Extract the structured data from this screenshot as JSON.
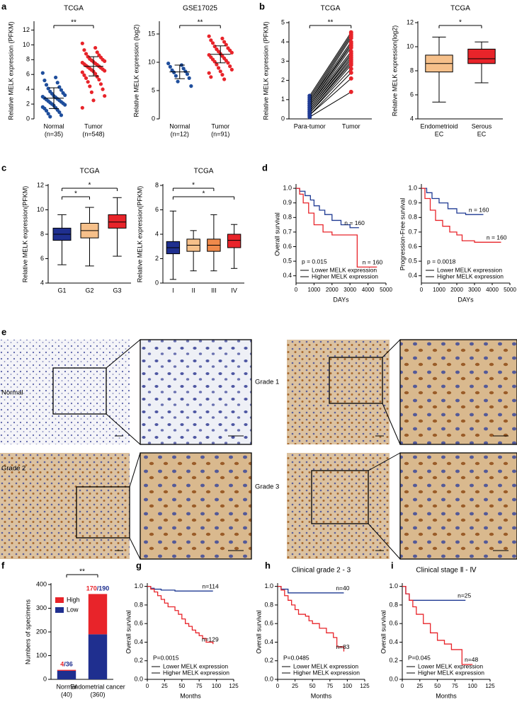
{
  "panel_labels": [
    "a",
    "b",
    "c",
    "d",
    "e",
    "f",
    "g",
    "h",
    "i"
  ],
  "histology": {
    "labels": [
      "Normal",
      "Grade 1",
      "Grade 2",
      "Grade 3"
    ]
  },
  "chart_data": [
    {
      "type": "dot",
      "title": "TCGA",
      "ylabel": "Relative MELK expression (PFKM)",
      "categories": [
        "Normal",
        "Tumor"
      ],
      "category_sublabels": [
        "(n=35)",
        "(n=548)"
      ],
      "colors": [
        "#1f4e9c",
        "#e8242a"
      ],
      "values": [
        [
          6.2,
          5.6,
          5.2,
          4.9,
          4.6,
          4.3,
          4.1,
          3.9,
          3.7,
          3.5,
          3.4,
          3.2,
          3.1,
          3.0,
          2.9,
          2.8,
          2.7,
          2.6,
          2.5,
          2.4,
          2.3,
          2.2,
          2.1,
          2.0,
          1.9,
          1.8,
          1.6,
          1.5,
          1.4,
          1.2,
          1.1,
          0.9,
          0.7,
          0.5,
          0.3
        ],
        [
          10.2,
          9.6,
          9.3,
          9.0,
          8.8,
          8.6,
          8.4,
          8.3,
          8.1,
          8.0,
          7.9,
          7.8,
          7.7,
          7.6,
          7.5,
          7.4,
          7.3,
          7.2,
          7.1,
          7.0,
          6.9,
          6.8,
          6.7,
          6.6,
          6.5,
          6.4,
          6.3,
          6.1,
          5.9,
          5.7,
          5.5,
          5.3,
          5.0,
          4.7,
          4.4,
          4.0,
          3.6,
          3.1,
          2.5,
          1.5
        ]
      ],
      "means": [
        2.8,
        7.1
      ],
      "sds": [
        1.4,
        1.3
      ],
      "ylim": [
        0,
        13
      ],
      "yticks": [
        0,
        2,
        4,
        6,
        8,
        10,
        12
      ],
      "significance": [
        {
          "groups": [
            "Normal",
            "Tumor"
          ],
          "label": "**"
        }
      ]
    },
    {
      "type": "dot",
      "title": "GSE17025",
      "ylabel": "Relative MELK expression (log2)",
      "categories": [
        "Normal",
        "Tumor"
      ],
      "category_sublabels": [
        "(n=12)",
        "(n=91)"
      ],
      "colors": [
        "#1f4e9c",
        "#e8242a"
      ],
      "values": [
        [
          9.8,
          9.5,
          9.2,
          8.9,
          8.6,
          8.4,
          8.2,
          7.9,
          7.6,
          7.2,
          6.6,
          5.8
        ],
        [
          14.6,
          14.2,
          13.9,
          13.6,
          13.4,
          13.1,
          12.8,
          12.5,
          12.3,
          12.1,
          11.9,
          11.7,
          11.5,
          11.3,
          11.1,
          10.9,
          10.7,
          10.5,
          10.3,
          10.1,
          9.9,
          9.6,
          9.3,
          9.0,
          8.7,
          8.4,
          8.1,
          7.8,
          7.4,
          7.0
        ]
      ],
      "means": [
        8.3,
        11.4
      ],
      "sds": [
        1.2,
        1.5
      ],
      "ylim": [
        0,
        17
      ],
      "yticks": [
        0,
        5,
        10,
        15
      ],
      "significance": [
        {
          "groups": [
            "Normal",
            "Tumor"
          ],
          "label": "**"
        }
      ]
    },
    {
      "type": "paired",
      "title": "TCGA",
      "ylabel": "Relative MELK expression (PFKM)",
      "categories": [
        "Para-tumor",
        "Tumor"
      ],
      "colors": [
        "#1f3a93",
        "#e8242a"
      ],
      "pairs": [
        [
          1.2,
          4.5
        ],
        [
          1.1,
          4.4
        ],
        [
          1.0,
          4.3
        ],
        [
          0.9,
          4.2
        ],
        [
          0.9,
          4.0
        ],
        [
          0.8,
          3.9
        ],
        [
          0.8,
          3.8
        ],
        [
          0.7,
          3.7
        ],
        [
          0.7,
          3.5
        ],
        [
          0.6,
          3.4
        ],
        [
          0.6,
          3.3
        ],
        [
          0.5,
          3.2
        ],
        [
          0.5,
          3.1
        ],
        [
          0.4,
          3.0
        ],
        [
          0.4,
          2.9
        ],
        [
          0.3,
          2.8
        ],
        [
          0.3,
          2.6
        ],
        [
          0.2,
          2.4
        ],
        [
          0.2,
          2.1
        ],
        [
          0.1,
          1.4
        ]
      ],
      "ylim": [
        0,
        5
      ],
      "yticks": [
        0,
        1,
        2,
        3,
        4,
        5
      ],
      "significance": [
        {
          "groups": [
            "Para-tumor",
            "Tumor"
          ],
          "label": "**"
        }
      ]
    },
    {
      "type": "box",
      "title": "TCGA",
      "ylabel": "Relative MELK expression(log2)",
      "categories": [
        "Endometrioid",
        "Serous"
      ],
      "category_sublabels": [
        "EC",
        "EC"
      ],
      "colors": [
        "#f6c08a",
        "#e8242a"
      ],
      "boxes": [
        {
          "min": 5.4,
          "q1": 7.9,
          "median": 8.6,
          "q3": 9.3,
          "max": 10.8
        },
        {
          "min": 7.0,
          "q1": 8.6,
          "median": 9.0,
          "q3": 9.8,
          "max": 10.4
        }
      ],
      "ylim": [
        4,
        12
      ],
      "yticks": [
        4,
        6,
        8,
        10,
        12
      ],
      "significance": [
        {
          "groups": [
            "Endometrioid",
            "Serous"
          ],
          "label": "*"
        }
      ]
    },
    {
      "type": "box",
      "title": "TCGA",
      "ylabel": "Relative MELK expression(PFKM)",
      "categories": [
        "G1",
        "G2",
        "G3"
      ],
      "colors": [
        "#1f2f8f",
        "#f6c08a",
        "#e8242a"
      ],
      "boxes": [
        {
          "min": 5.5,
          "q1": 7.5,
          "median": 8.0,
          "q3": 8.5,
          "max": 9.6
        },
        {
          "min": 5.4,
          "q1": 7.7,
          "median": 8.3,
          "q3": 8.9,
          "max": 10.2
        },
        {
          "min": 6.2,
          "q1": 8.5,
          "median": 9.0,
          "q3": 9.6,
          "max": 11.0
        }
      ],
      "ylim": [
        4,
        12
      ],
      "yticks": [
        4,
        6,
        8,
        10,
        12
      ],
      "significance": [
        {
          "groups": [
            "G1",
            "G3"
          ],
          "label": "*"
        },
        {
          "groups": [
            "G1",
            "G2"
          ],
          "label": "*"
        }
      ]
    },
    {
      "type": "box",
      "title": "TCGA",
      "ylabel": "Relative MELK expression(PFKM)",
      "categories": [
        "I",
        "II",
        "III",
        "IV"
      ],
      "colors": [
        "#1f2f8f",
        "#f6c08a",
        "#f08a4b",
        "#e8242a"
      ],
      "boxes": [
        {
          "min": 0.3,
          "q1": 2.4,
          "median": 2.9,
          "q3": 3.4,
          "max": 5.9
        },
        {
          "min": 1.0,
          "q1": 2.6,
          "median": 3.1,
          "q3": 3.6,
          "max": 4.3
        },
        {
          "min": 1.0,
          "q1": 2.6,
          "median": 3.1,
          "q3": 3.6,
          "max": 5.6
        },
        {
          "min": 1.2,
          "q1": 2.9,
          "median": 3.5,
          "q3": 4.0,
          "max": 4.8
        }
      ],
      "ylim": [
        0,
        8
      ],
      "yticks": [
        0,
        2,
        4,
        6,
        8
      ],
      "significance": [
        {
          "groups": [
            "I",
            "III"
          ],
          "label": "*"
        },
        {
          "groups": [
            "I",
            "IV"
          ],
          "label": "*"
        }
      ]
    },
    {
      "type": "km",
      "ylabel": "Overall survival",
      "xlabel": "DAYs",
      "p_text": "p = 0.015",
      "xlim": [
        0,
        5000
      ],
      "xticks": [
        0,
        1000,
        2000,
        3000,
        4000,
        5000
      ],
      "ylim": [
        0.35,
        1.02
      ],
      "yticks": [
        0.4,
        0.5,
        0.6,
        0.7,
        0.8,
        0.9,
        {
          "value": 1,
          "label": "1.0"
        }
      ],
      "series": [
        {
          "name": "Lower MELK expression",
          "color": "#1f3a93",
          "n_label": "n = 160",
          "x": [
            0,
            200,
            500,
            800,
            1000,
            1300,
            1600,
            2000,
            2500,
            3000,
            3500
          ],
          "values": [
            1,
            0.98,
            0.95,
            0.92,
            0.88,
            0.85,
            0.82,
            0.78,
            0.75,
            0.73,
            0.73
          ]
        },
        {
          "name": "Higher MELK expression",
          "color": "#e8242a",
          "n_label": "n = 160",
          "x": [
            0,
            200,
            400,
            700,
            1000,
            1500,
            2000,
            2500,
            3000,
            3400,
            3400,
            4500
          ],
          "values": [
            1,
            0.96,
            0.9,
            0.83,
            0.75,
            0.7,
            0.68,
            0.68,
            0.68,
            0.68,
            0.46,
            0.46
          ]
        }
      ]
    },
    {
      "type": "km",
      "ylabel": "Progression-Free survival",
      "xlabel": "DAYs",
      "p_text": "p = 0.0018",
      "xlim": [
        0,
        5000
      ],
      "xticks": [
        0,
        1000,
        2000,
        3000,
        4000,
        5000
      ],
      "ylim": [
        0.35,
        1.02
      ],
      "yticks": [
        0.4,
        0.5,
        0.6,
        0.7,
        0.8,
        0.9,
        {
          "value": 1,
          "label": "1.0"
        }
      ],
      "series": [
        {
          "name": "Lower MELK expression",
          "color": "#1f3a93",
          "n_label": "n = 160",
          "x": [
            0,
            300,
            600,
            1000,
            1500,
            2000,
            2500,
            3500
          ],
          "values": [
            1,
            0.97,
            0.93,
            0.9,
            0.86,
            0.83,
            0.82,
            0.82
          ]
        },
        {
          "name": "Higher MELK expression",
          "color": "#e8242a",
          "n_label": "n = 160",
          "x": [
            0,
            200,
            500,
            800,
            1200,
            1600,
            2000,
            2300,
            3000,
            4500
          ],
          "values": [
            1,
            0.93,
            0.85,
            0.78,
            0.74,
            0.7,
            0.68,
            0.64,
            0.63,
            0.63
          ]
        }
      ]
    },
    {
      "type": "stacked_bar",
      "ylabel": "Numbers of specimens",
      "categories": [
        "Normal",
        "Endometrial cancer"
      ],
      "category_sublabels": [
        "(40)",
        "(360)"
      ],
      "ylim": [
        0,
        400
      ],
      "yticks": [
        0,
        100,
        200,
        300,
        400
      ],
      "series": [
        {
          "name": "Low",
          "color": "#1f2f8f",
          "values": [
            36,
            190
          ],
          "value_labels": [
            "/36",
            "/190"
          ]
        },
        {
          "name": "High",
          "color": "#e8242a",
          "values": [
            4,
            170
          ],
          "value_labels": [
            "4",
            "170"
          ]
        }
      ],
      "significance": [
        {
          "groups": [
            "Normal",
            "Endometrial cancer"
          ],
          "label": "**"
        }
      ]
    },
    {
      "type": "km",
      "ylabel": "Overall survival",
      "xlabel": "Months",
      "p_text": "P=0.0015",
      "xlim": [
        0,
        125
      ],
      "xticks": [
        0,
        25,
        50,
        75,
        100,
        125
      ],
      "ylim": [
        0,
        1.02
      ],
      "yticks": [
        {
          "value": 0,
          "label": "0.0"
        },
        0.2,
        0.4,
        0.6,
        0.8,
        {
          "value": 1,
          "label": "1.0"
        }
      ],
      "series": [
        {
          "name": "Lower MELK expression",
          "color": "#1f3a93",
          "n_label": "n=114",
          "x": [
            0,
            5,
            10,
            20,
            40,
            60,
            95
          ],
          "values": [
            1,
            0.98,
            0.97,
            0.96,
            0.95,
            0.95,
            0.95
          ]
        },
        {
          "name": "Higher MELK expression",
          "color": "#e8242a",
          "n_label": "n=129",
          "x": [
            0,
            5,
            10,
            15,
            20,
            25,
            30,
            40,
            45,
            50,
            55,
            60,
            65,
            70,
            75,
            80,
            85,
            95
          ],
          "values": [
            1,
            0.97,
            0.94,
            0.9,
            0.86,
            0.82,
            0.78,
            0.74,
            0.7,
            0.65,
            0.6,
            0.57,
            0.53,
            0.5,
            0.47,
            0.44,
            0.4,
            0.38
          ]
        }
      ]
    },
    {
      "type": "km",
      "title": "Clinical grade 2 - 3",
      "ylabel": "Overall survival",
      "xlabel": "Months",
      "p_text": "P=0.0485",
      "xlim": [
        0,
        125
      ],
      "xticks": [
        0,
        25,
        50,
        75,
        100,
        125
      ],
      "ylim": [
        0,
        1.02
      ],
      "yticks": [
        {
          "value": 0,
          "label": "0.0"
        },
        0.2,
        0.4,
        0.6,
        0.8,
        {
          "value": 1,
          "label": "1.0"
        }
      ],
      "series": [
        {
          "name": "Lower MELK expression",
          "color": "#1f3a93",
          "n_label": "n=40",
          "x": [
            0,
            5,
            15,
            95
          ],
          "values": [
            1,
            0.97,
            0.93,
            0.93
          ]
        },
        {
          "name": "Higher MELK expression",
          "color": "#e8242a",
          "n_label": "n=83",
          "x": [
            0,
            5,
            10,
            15,
            20,
            25,
            30,
            40,
            45,
            50,
            60,
            70,
            80,
            85,
            95
          ],
          "values": [
            1,
            0.96,
            0.9,
            0.85,
            0.8,
            0.75,
            0.7,
            0.68,
            0.63,
            0.6,
            0.55,
            0.5,
            0.45,
            0.35,
            0.3
          ]
        }
      ]
    },
    {
      "type": "km",
      "title": "Clinical stage Ⅱ - Ⅳ",
      "ylabel": "Overall survival",
      "xlabel": "Months",
      "p_text": "P=0.045",
      "xlim": [
        0,
        125
      ],
      "xticks": [
        0,
        25,
        50,
        75,
        100,
        125
      ],
      "ylim": [
        0,
        1.02
      ],
      "yticks": [
        {
          "value": 0,
          "label": "0.0"
        },
        0.2,
        0.4,
        0.6,
        0.8,
        {
          "value": 1,
          "label": "1.0"
        }
      ],
      "series": [
        {
          "name": "Lower MELK expression",
          "color": "#1f3a93",
          "n_label": "n=25",
          "x": [
            0,
            5,
            10,
            90
          ],
          "values": [
            1,
            0.92,
            0.85,
            0.85
          ]
        },
        {
          "name": "Higher MELK expression",
          "color": "#e8242a",
          "n_label": "n=48",
          "x": [
            0,
            5,
            10,
            15,
            20,
            30,
            40,
            50,
            60,
            70,
            80,
            85,
            100
          ],
          "values": [
            1,
            0.92,
            0.85,
            0.78,
            0.7,
            0.6,
            0.5,
            0.42,
            0.38,
            0.32,
            0.32,
            0.16,
            0.16
          ]
        }
      ]
    }
  ]
}
